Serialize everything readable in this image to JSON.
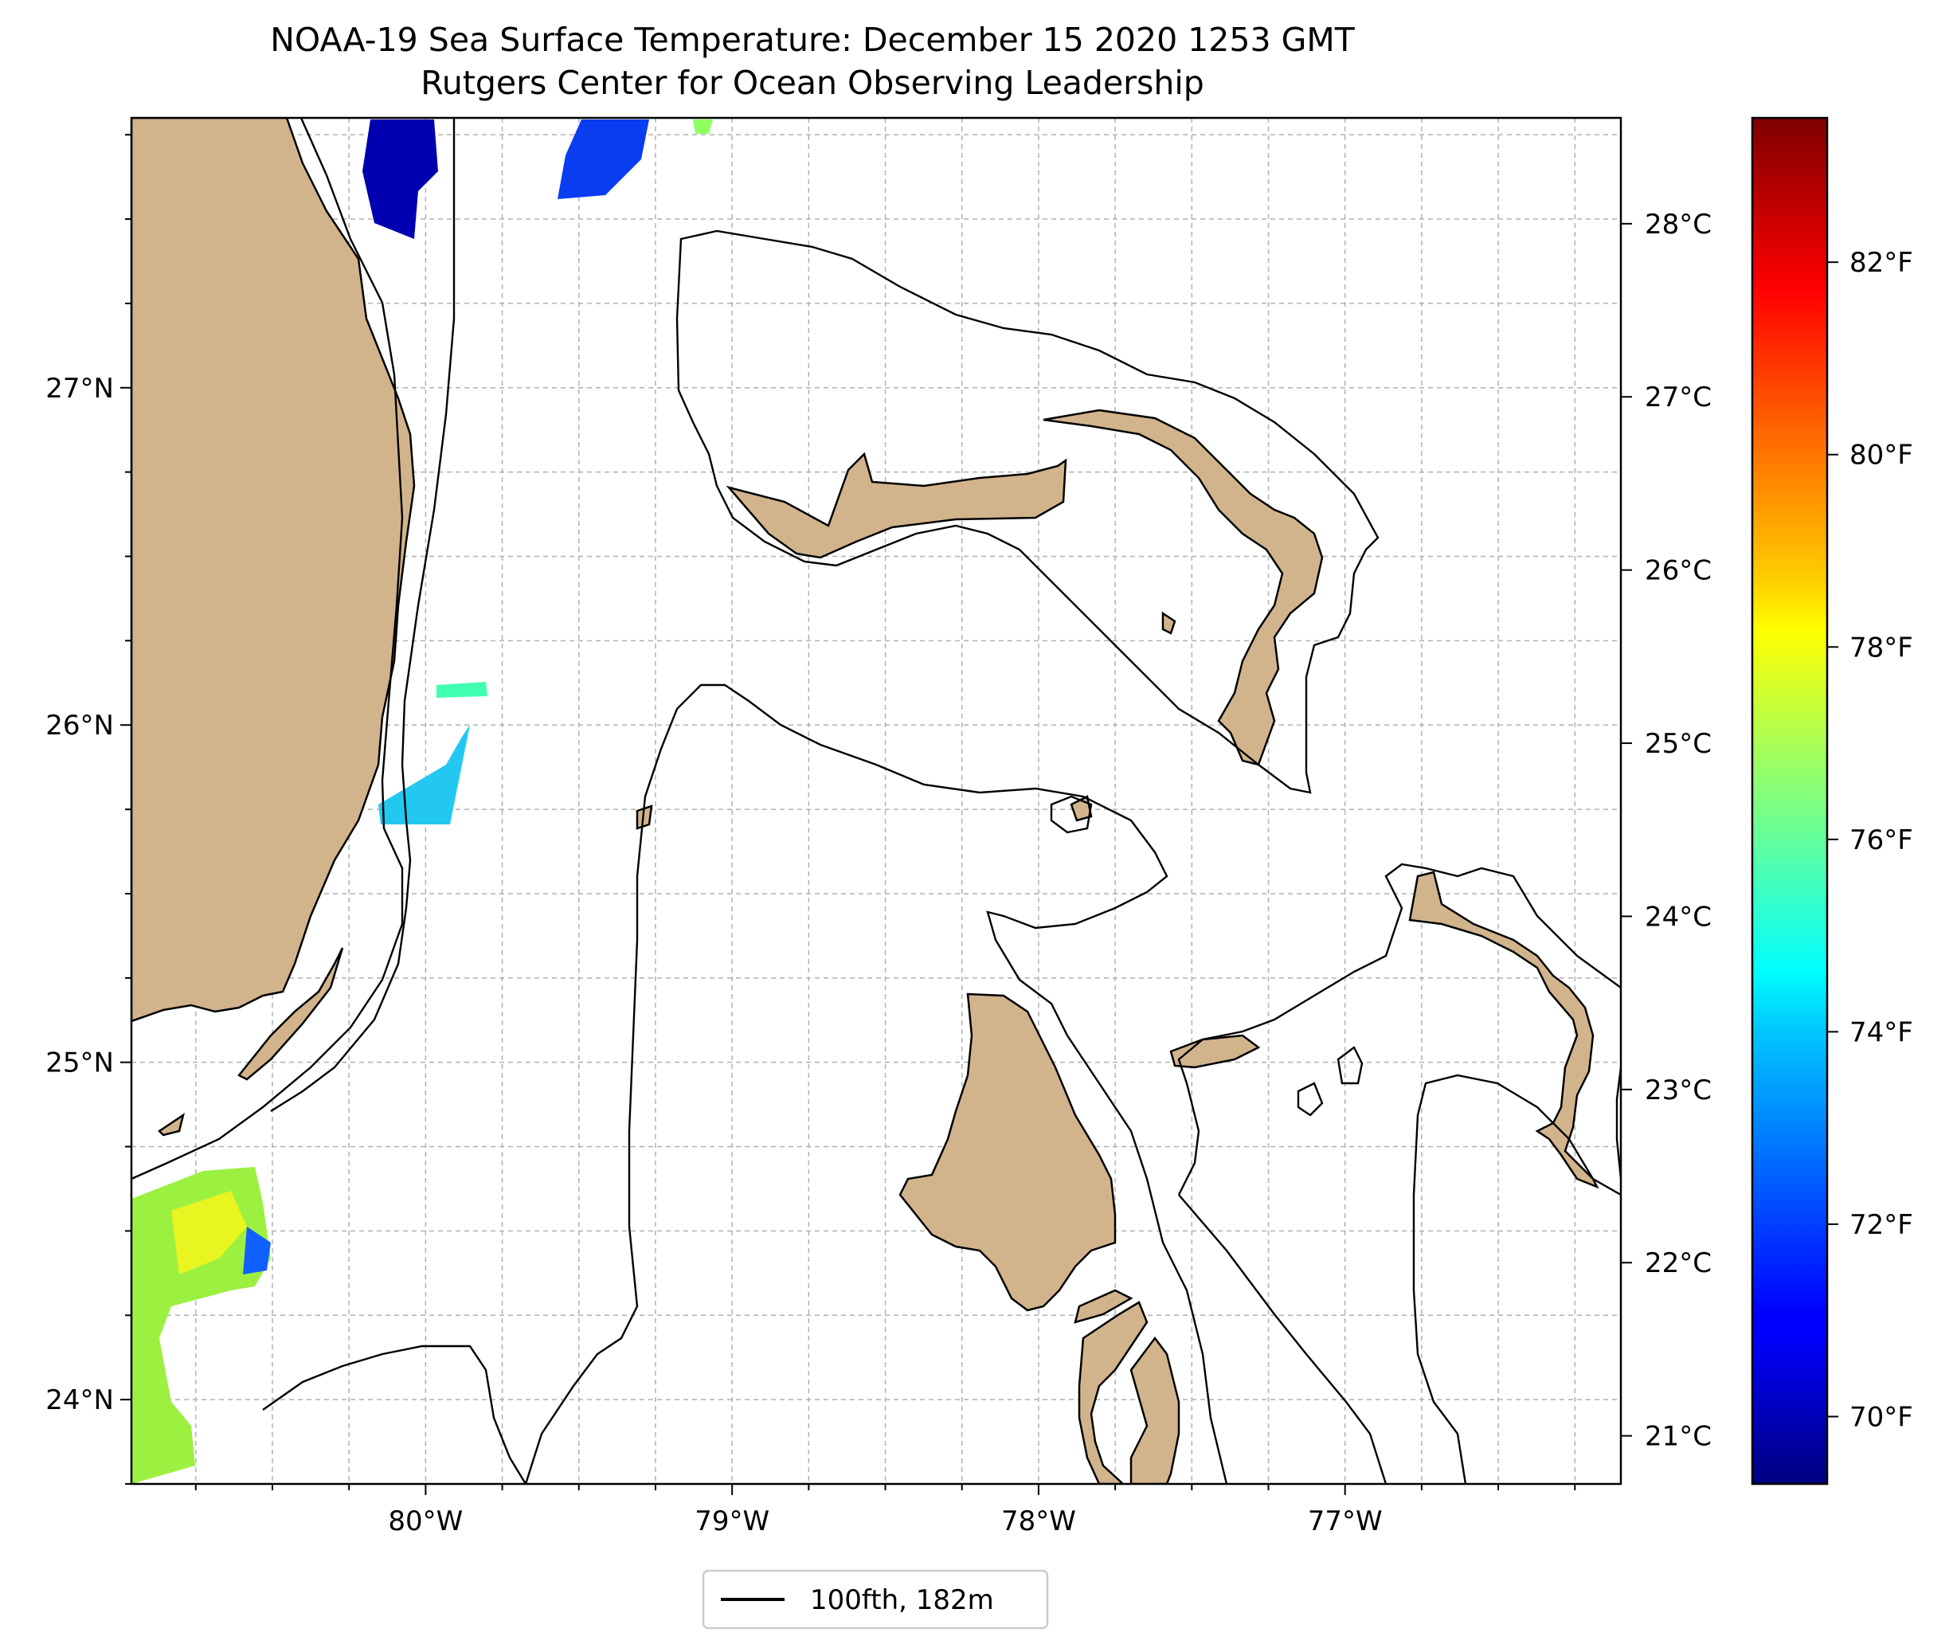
{
  "title": {
    "line1": "NOAA-19 Sea Surface Temperature: December 15 2020 1253 GMT",
    "line2": "Rutgers Center for Ocean Observing Leadership"
  },
  "map": {
    "lon_range": [
      -80.96,
      -76.1
    ],
    "lat_range": [
      23.75,
      27.8
    ],
    "x_ticks": [
      {
        "value": -80,
        "label": "80°W"
      },
      {
        "value": -79,
        "label": "79°W"
      },
      {
        "value": -78,
        "label": "78°W"
      },
      {
        "value": -77,
        "label": "77°W"
      }
    ],
    "y_ticks": [
      {
        "value": 24,
        "label": "24°N"
      },
      {
        "value": 25,
        "label": "25°N"
      },
      {
        "value": 26,
        "label": "26°N"
      },
      {
        "value": 27,
        "label": "27°N"
      }
    ],
    "grid": true,
    "land_color": "#d2b48c",
    "contour_color": "#000000",
    "ocean_color": "#ffffff"
  },
  "legend": {
    "label": "100fth, 182m",
    "placement": "bottom-center"
  },
  "colorbar": {
    "colormap": "jet",
    "range_f": [
      69.3,
      83.5
    ],
    "celsius_ticks": [
      {
        "value": 21,
        "label": "21°C"
      },
      {
        "value": 22,
        "label": "22°C"
      },
      {
        "value": 23,
        "label": "23°C"
      },
      {
        "value": 24,
        "label": "24°C"
      },
      {
        "value": 25,
        "label": "25°C"
      },
      {
        "value": 26,
        "label": "26°C"
      },
      {
        "value": 27,
        "label": "27°C"
      },
      {
        "value": 28,
        "label": "28°C"
      }
    ],
    "fahrenheit_ticks": [
      {
        "value": 70,
        "label": "70°F"
      },
      {
        "value": 72,
        "label": "72°F"
      },
      {
        "value": 74,
        "label": "74°F"
      },
      {
        "value": 76,
        "label": "76°F"
      },
      {
        "value": 78,
        "label": "78°F"
      },
      {
        "value": 80,
        "label": "80°F"
      },
      {
        "value": 82,
        "label": "82°F"
      }
    ]
  }
}
